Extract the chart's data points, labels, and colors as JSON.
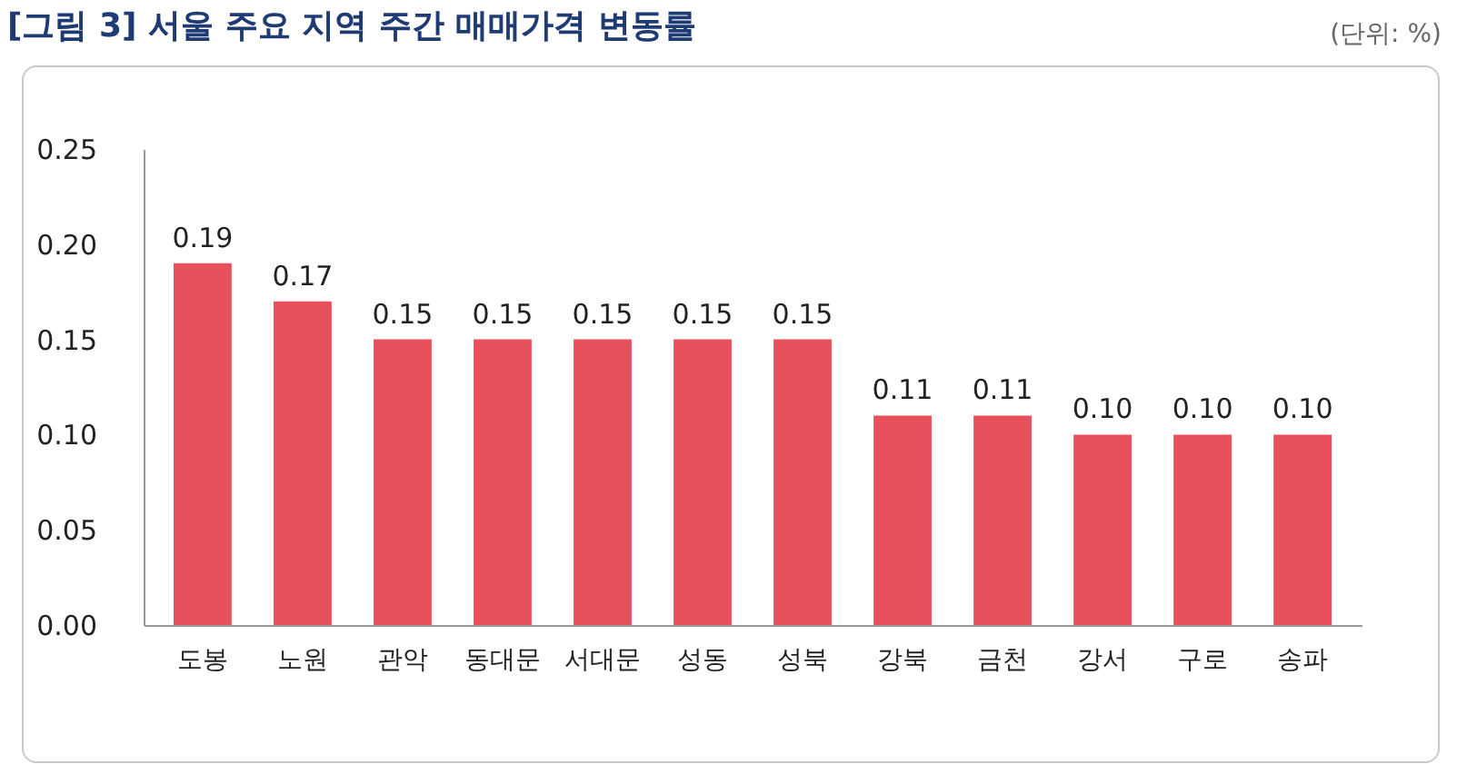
{
  "chart_data": {
    "type": "bar",
    "title": "[그림 3] 서울 주요 지역 주간 매매가격 변동률",
    "annotations": [
      "(단위: %)"
    ],
    "categories": [
      "도봉",
      "노원",
      "관악",
      "동대문",
      "서대문",
      "성동",
      "성북",
      "강북",
      "금천",
      "강서",
      "구로",
      "송파"
    ],
    "values": [
      0.19,
      0.17,
      0.15,
      0.15,
      0.15,
      0.15,
      0.15,
      0.11,
      0.11,
      0.1,
      0.1,
      0.1
    ],
    "value_labels": [
      "0.19",
      "0.17",
      "0.15",
      "0.15",
      "0.15",
      "0.15",
      "0.15",
      "0.11",
      "0.11",
      "0.10",
      "0.10",
      "0.10"
    ],
    "color": "#e8505b",
    "ylim": [
      0,
      0.25
    ],
    "yticks": [
      {
        "value": 0,
        "label": "0.00"
      },
      {
        "value": 0.05,
        "label": "0.05"
      },
      {
        "value": 0.1,
        "label": "0.10"
      },
      {
        "value": 0.15,
        "label": "0.15"
      },
      {
        "value": 0.2,
        "label": "0.20"
      },
      {
        "value": 0.25,
        "label": "0.25"
      }
    ],
    "grid": false
  }
}
